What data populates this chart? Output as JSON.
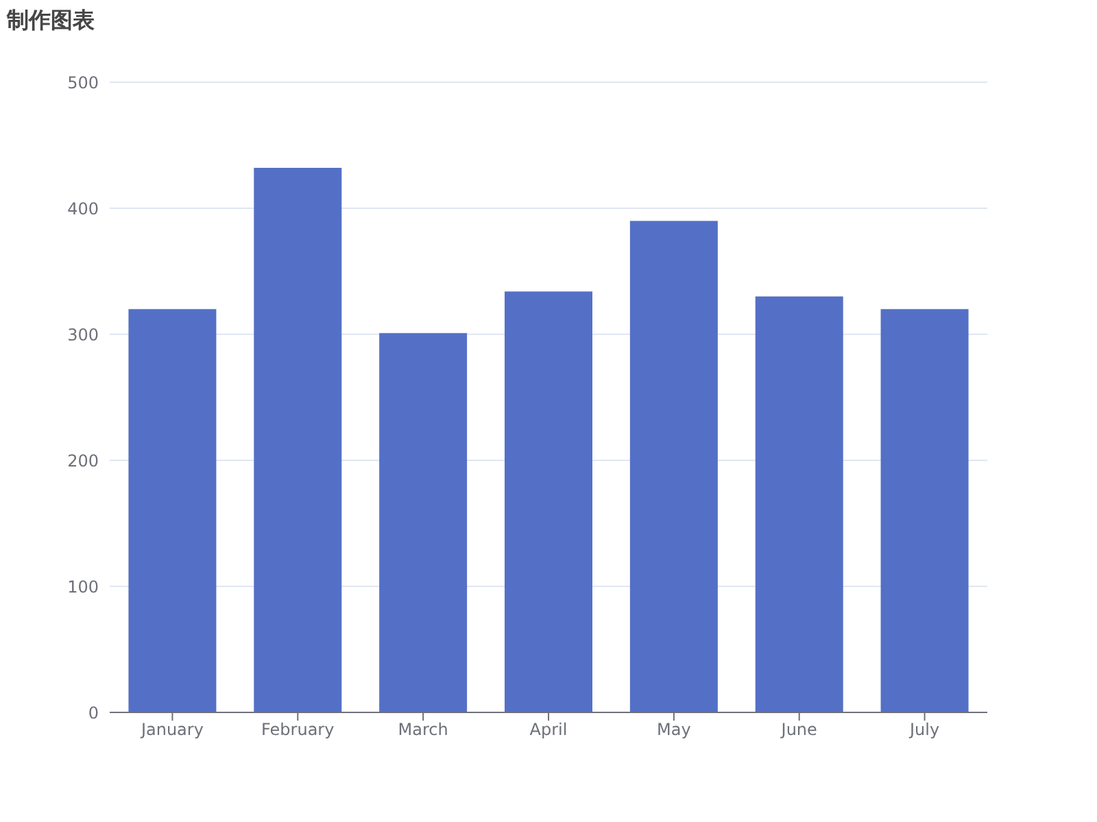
{
  "chart_data": {
    "type": "bar",
    "title": "制作图表",
    "categories": [
      "January",
      "February",
      "March",
      "April",
      "May",
      "June",
      "July"
    ],
    "values": [
      320,
      432,
      301,
      334,
      390,
      330,
      320
    ],
    "color": "#5470c6",
    "ylim": [
      0,
      500
    ],
    "yticks": [
      0,
      100,
      200,
      300,
      400,
      500
    ],
    "grid": "y"
  }
}
